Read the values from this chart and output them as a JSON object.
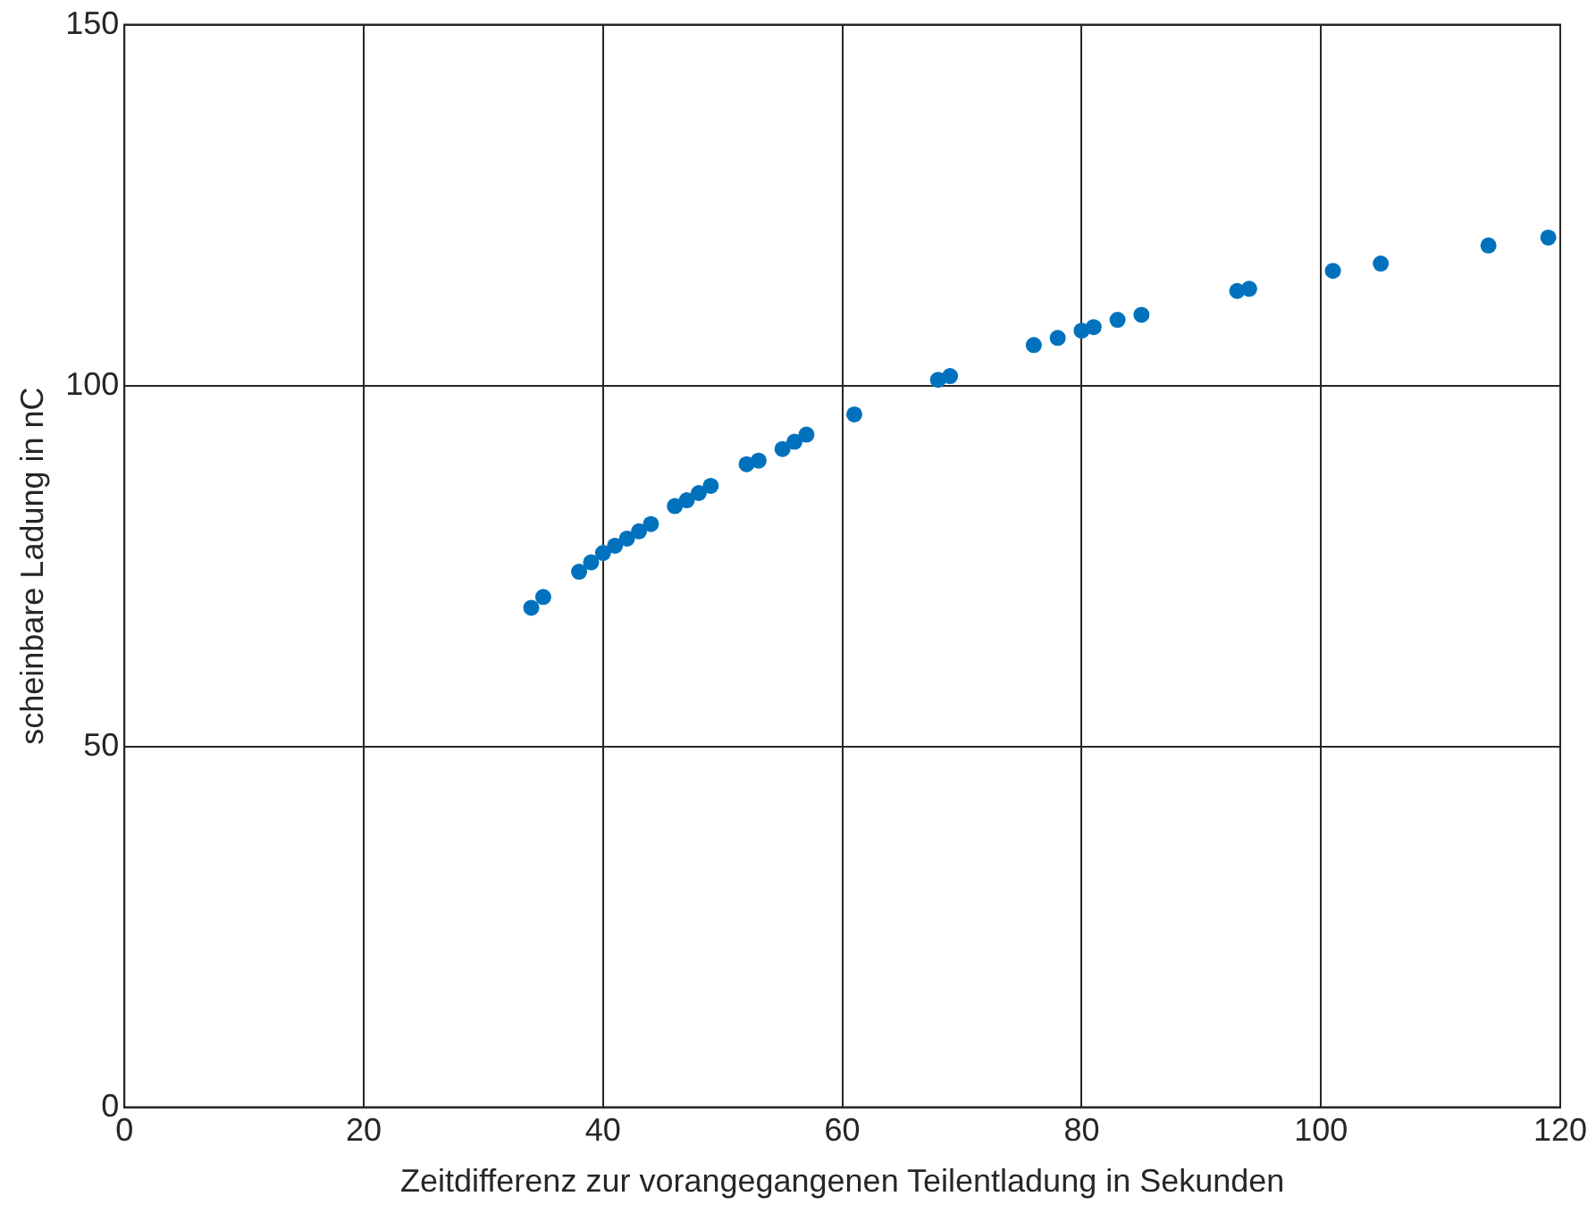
{
  "chart_data": {
    "type": "scatter",
    "xlabel": "Zeitdifferenz zur vorangegangenen Teilentladung in Sekunden",
    "ylabel": "scheinbare Ladung in nC",
    "x": [
      34,
      35,
      38,
      39,
      40,
      41,
      42,
      43,
      44,
      46,
      47,
      48,
      49,
      52,
      53,
      55,
      56,
      57,
      61,
      68,
      69,
      76,
      78,
      80,
      81,
      83,
      85,
      93,
      94,
      101,
      105,
      114,
      119
    ],
    "series": [
      {
        "color": "#0072bd",
        "values": [
          69.2,
          70.7,
          74.2,
          75.5,
          76.8,
          77.8,
          78.8,
          79.8,
          80.8,
          83.3,
          84.1,
          85.1,
          86.1,
          89.1,
          89.6,
          91.2,
          92.2,
          93.2,
          96.0,
          100.8,
          101.3,
          105.6,
          106.6,
          107.6,
          108.1,
          109.1,
          109.8,
          113.1,
          113.4,
          115.9,
          116.9,
          119.4,
          120.5
        ]
      }
    ],
    "xlim": [
      0,
      120
    ],
    "xticks": [
      0,
      20,
      40,
      60,
      80,
      100,
      120
    ],
    "ylim": [
      0,
      150
    ],
    "yticks": [
      0,
      50,
      100,
      150
    ],
    "grid": true,
    "legend": false,
    "marker": "circle"
  }
}
